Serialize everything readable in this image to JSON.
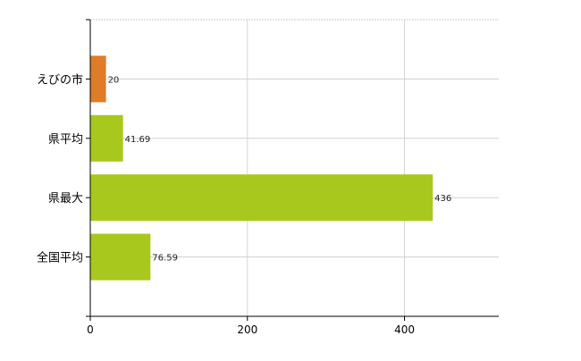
{
  "chart_data": {
    "type": "bar",
    "orientation": "horizontal",
    "categories": [
      "えびの市",
      "県平均",
      "県最大",
      "全国平均"
    ],
    "values": [
      20,
      41.69,
      436,
      76.59
    ],
    "value_labels": [
      "20",
      "41.69",
      "436",
      "76.59"
    ],
    "colors": [
      "#e07b28",
      "#a8c81e",
      "#a8c81e",
      "#a8c81e"
    ],
    "xlim": [
      0,
      520
    ],
    "xticks": [
      0,
      200,
      400
    ],
    "xtick_labels": [
      "0",
      "200",
      "400"
    ],
    "grid": true,
    "title": "",
    "xlabel": "",
    "ylabel": ""
  }
}
